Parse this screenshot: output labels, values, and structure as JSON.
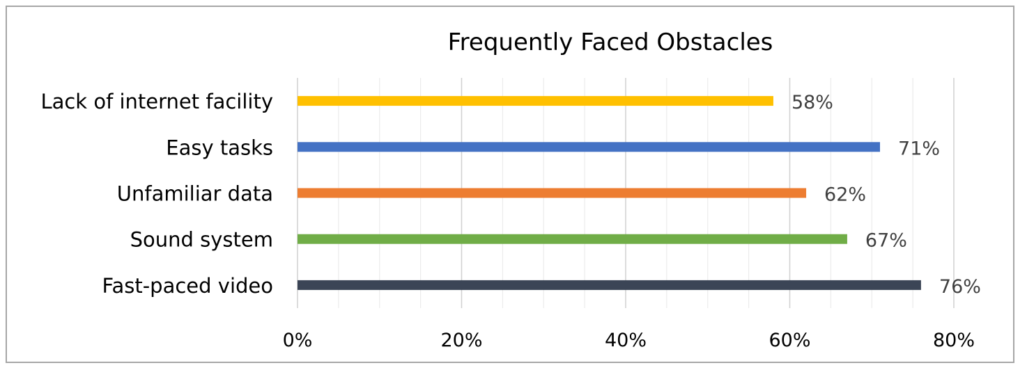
{
  "chart_data": {
    "type": "bar",
    "orientation": "horizontal",
    "title": "Frequently Faced Obstacles",
    "categories": [
      "Lack of internet facility",
      "Easy tasks ",
      "Unfamiliar data",
      "Sound system",
      "Fast-paced video"
    ],
    "values": [
      58,
      71,
      62,
      67,
      76
    ],
    "value_labels": [
      "58%",
      "71%",
      "62%",
      "67%",
      "76%"
    ],
    "colors": [
      "#FFC000",
      "#4472C4",
      "#ED7D31",
      "#70AD47",
      "#3B4556"
    ],
    "xlim": [
      0,
      80
    ],
    "x_ticks": [
      0,
      20,
      40,
      60,
      80
    ],
    "x_tick_labels": [
      "0%",
      "20%",
      "40%",
      "60%",
      "80%"
    ],
    "grid": true,
    "legend": "none"
  }
}
